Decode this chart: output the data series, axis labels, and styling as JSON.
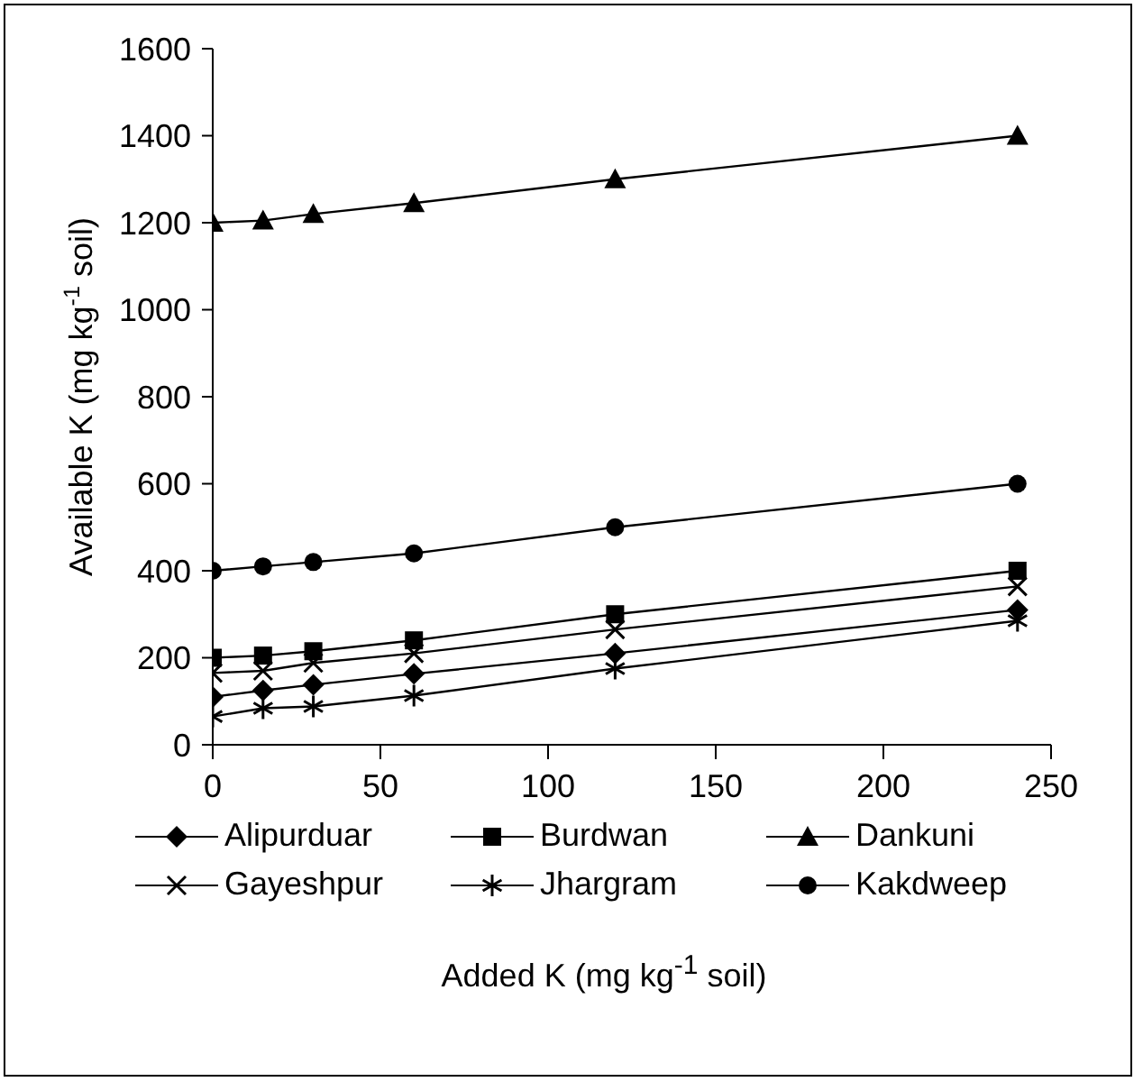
{
  "chart_data": {
    "type": "line",
    "xlabel": "Added K (mg kg$^{-1}$ soil)",
    "ylabel": "Available K (mg kg$^{-1}$ soil)",
    "x": [
      0,
      15,
      30,
      60,
      120,
      240
    ],
    "series": [
      {
        "name": "Alipurduar",
        "color": "#000000",
        "marker": "diamond",
        "values": [
          110,
          125,
          138,
          163,
          210,
          310
        ]
      },
      {
        "name": "Burdwan",
        "color": "#000000",
        "marker": "square",
        "values": [
          200,
          205,
          215,
          240,
          300,
          400
        ]
      },
      {
        "name": "Dankuni",
        "color": "#000000",
        "marker": "triangle",
        "values": [
          1200,
          1205,
          1220,
          1245,
          1300,
          1400
        ]
      },
      {
        "name": "Gayeshpur",
        "color": "#000000",
        "marker": "cross",
        "values": [
          165,
          170,
          188,
          210,
          265,
          364
        ]
      },
      {
        "name": "Jhargram",
        "color": "#000000",
        "marker": "cross",
        "values": [
          65,
          84,
          88,
          113,
          175,
          285
        ]
      },
      {
        "name": "Kakdweep",
        "color": "#000000",
        "marker": "circle",
        "values": [
          400,
          410,
          420,
          440,
          500,
          600
        ]
      }
    ],
    "xlim": [
      0,
      250
    ],
    "xticks": [
      0,
      50,
      100,
      150,
      200,
      250
    ],
    "ylim": [
      0,
      1600
    ],
    "yticks": [
      0,
      200,
      400,
      600,
      800,
      1000,
      1200,
      1400,
      1600
    ],
    "grid": false,
    "legend": "bottom",
    "line_style": "solid"
  }
}
